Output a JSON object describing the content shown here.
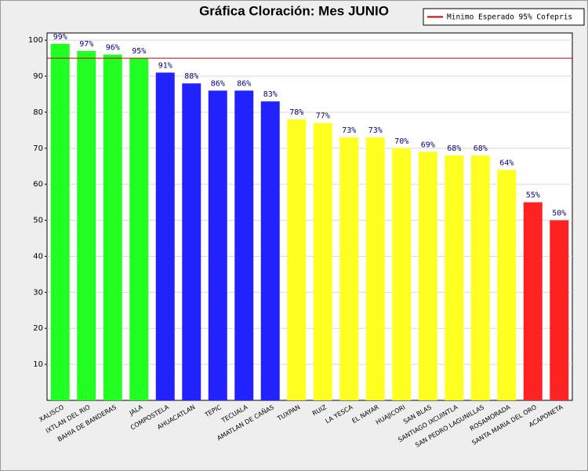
{
  "chart_data": {
    "type": "bar",
    "title": "Gráfica Cloración: Mes JUNIO",
    "categories": [
      "XALISCO",
      "IXTLAN DEL RIO",
      "BAHIA DE BANDERAS",
      "JALA",
      "COMPOSTELA",
      "AHUACATLAN",
      "TEPIC",
      "TECUALA",
      "AMATLAN DE CAÑAS",
      "TUXPAN",
      "RUIZ",
      "LA YESCA",
      "EL NAYAR",
      "HUAJICORI",
      "SAN BLAS",
      "SANTIAGO IXCUINTLA",
      "SAN PEDRO LAGUNILLAS",
      "ROSAMORADA",
      "SANTA MARIA DEL ORO",
      "ACAPONETA"
    ],
    "values": [
      99,
      97,
      96,
      95,
      91,
      88,
      86,
      86,
      83,
      78,
      77,
      73,
      73,
      70,
      69,
      68,
      68,
      64,
      55,
      50
    ],
    "value_labels": [
      "99%",
      "97%",
      "96%",
      "95%",
      "91%",
      "88%",
      "86%",
      "86%",
      "83%",
      "78%",
      "77%",
      "73%",
      "73%",
      "70%",
      "69%",
      "68%",
      "68%",
      "64%",
      "55%",
      "50%"
    ],
    "colors": [
      "#22ff22",
      "#22ff22",
      "#22ff22",
      "#22ff22",
      "#2222ff",
      "#2222ff",
      "#2222ff",
      "#2222ff",
      "#2222ff",
      "#ffff22",
      "#ffff22",
      "#ffff22",
      "#ffff22",
      "#ffff22",
      "#ffff22",
      "#ffff22",
      "#ffff22",
      "#ffff22",
      "#ff2222",
      "#ff2222"
    ],
    "ylim": [
      0,
      102
    ],
    "yticks": [
      10,
      20,
      30,
      40,
      50,
      60,
      70,
      80,
      90,
      100
    ],
    "grid": true,
    "reference_line": {
      "value": 95,
      "label": "Minimo Esperado 95% Cofepris",
      "color": "#cc0000"
    }
  }
}
